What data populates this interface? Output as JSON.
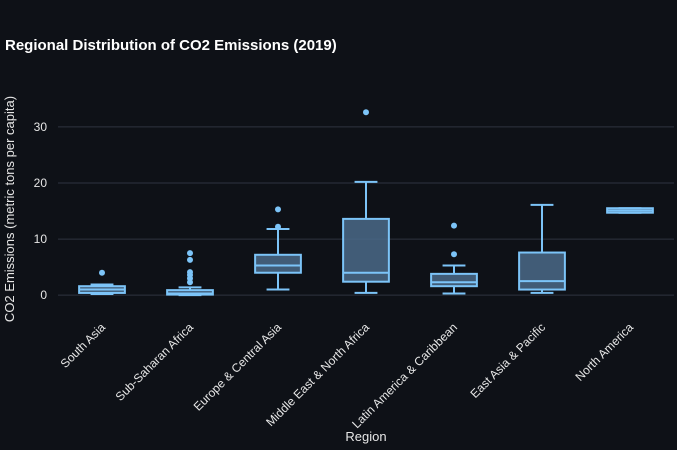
{
  "chart_data": {
    "type": "box",
    "title": "Regional Distribution of CO2 Emissions (2019)",
    "xlabel": "Region",
    "ylabel": "CO2 Emissions (metric tons per capita)",
    "ylim": [
      -3,
      38
    ],
    "yticks": [
      0,
      10,
      20,
      30
    ],
    "grid": true,
    "categories": [
      "South Asia",
      "Sub-Saharan Africa",
      "Europe & Central Asia",
      "Middle East & North Africa",
      "Latin America & Caribbean",
      "East Asia & Pacific",
      "North America"
    ],
    "boxes": [
      {
        "min": 0.2,
        "q1": 0.4,
        "median": 1.0,
        "q3": 1.6,
        "max": 1.9,
        "outliers": [
          4.0
        ]
      },
      {
        "min": 0.0,
        "q1": 0.1,
        "median": 0.3,
        "q3": 0.9,
        "max": 1.4,
        "outliers": [
          2.3,
          3.0,
          3.6,
          4.1,
          6.3,
          7.5
        ]
      },
      {
        "min": 1.0,
        "q1": 4.0,
        "median": 5.3,
        "q3": 7.2,
        "max": 11.8,
        "outliers": [
          12.2,
          15.3
        ]
      },
      {
        "min": 0.4,
        "q1": 2.4,
        "median": 4.0,
        "q3": 13.6,
        "max": 20.2,
        "outliers": [
          32.6
        ]
      },
      {
        "min": 0.3,
        "q1": 1.6,
        "median": 2.3,
        "q3": 3.8,
        "max": 5.3,
        "outliers": [
          7.3,
          12.4
        ]
      },
      {
        "min": 0.4,
        "q1": 1.0,
        "median": 2.5,
        "q3": 7.6,
        "max": 16.1,
        "outliers": []
      },
      {
        "min": 14.7,
        "q1": 14.7,
        "median": 15.1,
        "q3": 15.5,
        "max": 15.5,
        "outliers": []
      }
    ],
    "colors": {
      "box_fill": "#4a6a88",
      "box_stroke": "#7cc4f8",
      "grid": "#2e3440",
      "text": "#e6e6e6"
    }
  }
}
